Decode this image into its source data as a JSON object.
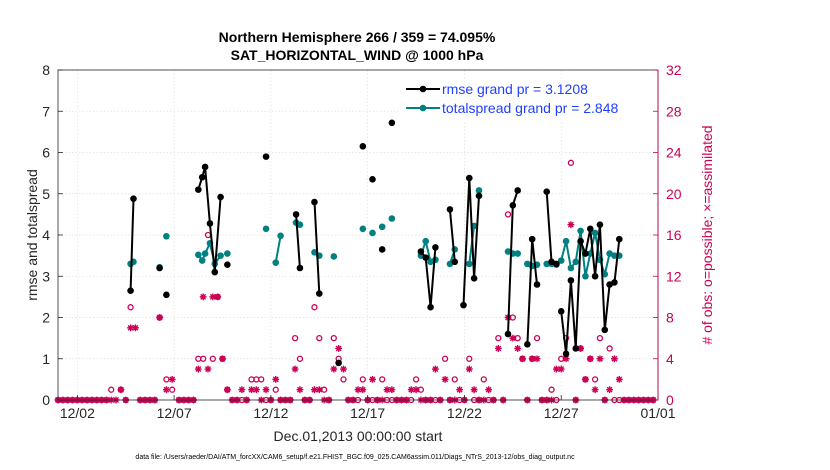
{
  "chart_data": {
    "type": "line",
    "title_line1": "Northern Hemisphere 266 / 359 = 74.095%",
    "title_line2": "SAT_HORIZONTAL_WIND @ 1000 hPa",
    "xlabel": "Dec.01,2013 00:00:00 start",
    "ylabel_left": "rmse and totalspread",
    "ylabel_right": "# of obs: o=possible; ×=assimilated",
    "footnote": "data file: /Users/raeder/DAI/ATM_forcXX/CAM6_setup/f.e21.FHIST_BGC.f09_025.CAM6assim.011/Diags_NTrS_2013-12/obs_diag_output.nc",
    "xlim": [
      0,
      31
    ],
    "ylim_left": [
      0,
      8
    ],
    "ylim_right": [
      0,
      32
    ],
    "x_ticks": [
      1,
      6,
      11,
      16,
      21,
      26,
      31
    ],
    "x_tick_labels": [
      "12/02",
      "12/07",
      "12/12",
      "12/17",
      "12/22",
      "12/27",
      "01/01"
    ],
    "y_left_ticks": [
      "0",
      "1",
      "2",
      "3",
      "4",
      "5",
      "6",
      "7",
      "8"
    ],
    "y_right_ticks": [
      "0",
      "4",
      "8",
      "12",
      "16",
      "20",
      "24",
      "28",
      "32"
    ],
    "grid": true,
    "colors": {
      "rmse": "#000000",
      "spread": "#008080",
      "obs": "#cc0055",
      "legend_text": "#1f3fff"
    },
    "series": [
      {
        "name": "rmse grand pr = 3.1208",
        "marker": "circle",
        "segments": [
          [
            [
              3.75,
              2.65
            ],
            [
              3.9,
              4.88
            ]
          ],
          [
            [
              5.25,
              3.2
            ]
          ],
          [
            [
              5.6,
              2.55
            ]
          ],
          [
            [
              7.25,
              5.1
            ],
            [
              7.45,
              5.4
            ],
            [
              7.6,
              5.65
            ],
            [
              7.85,
              4.28
            ],
            [
              8.1,
              3.1
            ],
            [
              8.4,
              4.92
            ]
          ],
          [
            [
              8.75,
              3.28
            ]
          ],
          [
            [
              10.75,
              5.9
            ]
          ],
          [
            [
              12.3,
              4.5
            ],
            [
              12.5,
              3.2
            ]
          ],
          [
            [
              13.25,
              4.8
            ],
            [
              13.5,
              2.58
            ]
          ],
          [
            [
              14.5,
              0.9
            ]
          ],
          [
            [
              15.75,
              6.15
            ]
          ],
          [
            [
              16.25,
              5.35
            ]
          ],
          [
            [
              16.75,
              3.65
            ]
          ],
          [
            [
              17.25,
              6.72
            ]
          ],
          [
            [
              18.75,
              3.6
            ],
            [
              19.0,
              3.45
            ],
            [
              19.25,
              2.25
            ],
            [
              19.5,
              3.7
            ]
          ],
          [
            [
              20.25,
              4.62
            ],
            [
              20.5,
              3.35
            ]
          ],
          [
            [
              20.95,
              2.3
            ],
            [
              21.25,
              5.38
            ],
            [
              21.5,
              2.95
            ],
            [
              21.75,
              4.95
            ]
          ],
          [
            [
              23.25,
              1.6
            ],
            [
              23.5,
              4.72
            ],
            [
              23.75,
              5.08
            ]
          ],
          [
            [
              24.25,
              1.35
            ],
            [
              24.5,
              3.9
            ],
            [
              24.75,
              2.8
            ]
          ],
          [
            [
              25.25,
              5.05
            ],
            [
              25.5,
              3.35
            ],
            [
              25.75,
              3.3
            ]
          ],
          [
            [
              26.0,
              2.15
            ],
            [
              26.25,
              1.12
            ],
            [
              26.5,
              2.9
            ],
            [
              26.75,
              1.25
            ],
            [
              27.0,
              3.85
            ],
            [
              27.25,
              3.55
            ],
            [
              27.5,
              4.15
            ],
            [
              27.75,
              3.0
            ],
            [
              28.0,
              4.25
            ],
            [
              28.25,
              1.7
            ],
            [
              28.5,
              2.8
            ],
            [
              28.75,
              2.85
            ],
            [
              29.0,
              3.9
            ]
          ]
        ]
      },
      {
        "name": "totalspread grand pr = 2.848",
        "marker": "circle",
        "segments": [
          [
            [
              3.75,
              3.3
            ],
            [
              3.9,
              3.35
            ]
          ],
          [
            [
              5.25,
              3.22
            ]
          ],
          [
            [
              5.6,
              3.97
            ]
          ],
          [
            [
              7.25,
              3.52
            ],
            [
              7.45,
              3.38
            ],
            [
              7.6,
              3.55
            ],
            [
              7.85,
              3.8
            ],
            [
              8.1,
              3.3
            ],
            [
              8.4,
              3.5
            ]
          ],
          [
            [
              8.75,
              3.55
            ]
          ],
          [
            [
              10.75,
              4.15
            ]
          ],
          [
            [
              11.25,
              3.33
            ],
            [
              11.5,
              3.98
            ]
          ],
          [
            [
              12.3,
              4.3
            ],
            [
              12.5,
              4.25
            ]
          ],
          [
            [
              13.25,
              3.58
            ],
            [
              13.5,
              3.5
            ]
          ],
          [
            [
              14.25,
              3.48
            ]
          ],
          [
            [
              15.75,
              4.15
            ]
          ],
          [
            [
              16.25,
              4.05
            ]
          ],
          [
            [
              16.75,
              4.2
            ]
          ],
          [
            [
              17.25,
              4.4
            ]
          ],
          [
            [
              18.75,
              3.5
            ],
            [
              19.0,
              3.85
            ],
            [
              19.25,
              3.35
            ],
            [
              19.5,
              3.4
            ]
          ],
          [
            [
              20.25,
              3.3
            ],
            [
              20.5,
              3.65
            ]
          ],
          [
            [
              21.25,
              3.3
            ],
            [
              21.5,
              4.22
            ]
          ],
          [
            [
              21.75,
              5.08
            ]
          ],
          [
            [
              23.25,
              3.6
            ],
            [
              23.5,
              3.55
            ],
            [
              23.75,
              3.55
            ]
          ],
          [
            [
              24.25,
              3.3
            ],
            [
              24.5,
              3.25
            ],
            [
              24.75,
              3.28
            ]
          ],
          [
            [
              25.25,
              3.3
            ],
            [
              25.5,
              3.3
            ],
            [
              25.75,
              3.28
            ]
          ],
          [
            [
              26.0,
              3.38
            ],
            [
              26.25,
              3.85
            ],
            [
              26.5,
              3.2
            ],
            [
              26.75,
              3.35
            ],
            [
              27.0,
              4.1
            ],
            [
              27.25,
              3.0
            ],
            [
              27.5,
              3.55
            ],
            [
              27.75,
              4.05
            ],
            [
              28.0,
              3.4
            ],
            [
              28.25,
              3.05
            ],
            [
              28.5,
              3.55
            ],
            [
              28.75,
              3.5
            ],
            [
              29.0,
              3.5
            ]
          ]
        ]
      }
    ],
    "obs_possible": [
      [
        0.0,
        0
      ],
      [
        0.25,
        0
      ],
      [
        0.5,
        0
      ],
      [
        0.75,
        0
      ],
      [
        1.0,
        0
      ],
      [
        1.25,
        0
      ],
      [
        1.5,
        0
      ],
      [
        1.75,
        0
      ],
      [
        2.0,
        0
      ],
      [
        2.25,
        0
      ],
      [
        2.5,
        0
      ],
      [
        2.75,
        1
      ],
      [
        3.25,
        1
      ],
      [
        3.5,
        0
      ],
      [
        3.75,
        9
      ],
      [
        4.25,
        0
      ],
      [
        4.5,
        0
      ],
      [
        4.75,
        0
      ],
      [
        5.0,
        0
      ],
      [
        5.25,
        8
      ],
      [
        5.6,
        2
      ],
      [
        5.9,
        1
      ],
      [
        6.25,
        0
      ],
      [
        6.5,
        0
      ],
      [
        6.75,
        0
      ],
      [
        7.0,
        0
      ],
      [
        7.25,
        4
      ],
      [
        7.5,
        4
      ],
      [
        7.75,
        16
      ],
      [
        8.0,
        4
      ],
      [
        8.25,
        10
      ],
      [
        8.5,
        4
      ],
      [
        8.75,
        1
      ],
      [
        9.0,
        0
      ],
      [
        9.25,
        0
      ],
      [
        9.5,
        0
      ],
      [
        9.75,
        0
      ],
      [
        10.0,
        2
      ],
      [
        10.25,
        2
      ],
      [
        10.5,
        2
      ],
      [
        10.75,
        0
      ],
      [
        11.0,
        0
      ],
      [
        11.25,
        1
      ],
      [
        11.5,
        0
      ],
      [
        11.75,
        0
      ],
      [
        12.0,
        0
      ],
      [
        12.25,
        6
      ],
      [
        12.5,
        4
      ],
      [
        12.75,
        0
      ],
      [
        13.0,
        0
      ],
      [
        13.25,
        9
      ],
      [
        13.5,
        6
      ],
      [
        13.75,
        1
      ],
      [
        14.0,
        0
      ],
      [
        14.25,
        6
      ],
      [
        14.5,
        4
      ],
      [
        14.75,
        2
      ],
      [
        15.0,
        0
      ],
      [
        15.25,
        0
      ],
      [
        15.5,
        0
      ],
      [
        15.75,
        2
      ],
      [
        16.0,
        0
      ],
      [
        16.25,
        0
      ],
      [
        16.5,
        0
      ],
      [
        16.75,
        2
      ],
      [
        17.0,
        0
      ],
      [
        17.25,
        0
      ],
      [
        17.5,
        0
      ],
      [
        17.75,
        0
      ],
      [
        18.0,
        0
      ],
      [
        18.25,
        0
      ],
      [
        18.5,
        2
      ],
      [
        18.75,
        1
      ],
      [
        19.0,
        0
      ],
      [
        19.25,
        0
      ],
      [
        19.5,
        0
      ],
      [
        19.75,
        0
      ],
      [
        20.0,
        4
      ],
      [
        20.25,
        0
      ],
      [
        20.5,
        2
      ],
      [
        20.75,
        0
      ],
      [
        21.0,
        0
      ],
      [
        21.25,
        4
      ],
      [
        21.5,
        0
      ],
      [
        21.75,
        0
      ],
      [
        22.0,
        2
      ],
      [
        22.25,
        0
      ],
      [
        22.5,
        0
      ],
      [
        22.75,
        6
      ],
      [
        23.0,
        0
      ],
      [
        23.25,
        18
      ],
      [
        23.5,
        8
      ],
      [
        23.75,
        6
      ],
      [
        24.0,
        4
      ],
      [
        24.25,
        0
      ],
      [
        24.5,
        4
      ],
      [
        24.75,
        6
      ],
      [
        25.0,
        0
      ],
      [
        25.25,
        0
      ],
      [
        25.5,
        1
      ],
      [
        25.75,
        0
      ],
      [
        26.0,
        4
      ],
      [
        26.25,
        6
      ],
      [
        26.5,
        23
      ],
      [
        26.75,
        0
      ],
      [
        27.0,
        5
      ],
      [
        27.25,
        2
      ],
      [
        27.5,
        4
      ],
      [
        27.75,
        2
      ],
      [
        28.0,
        6
      ],
      [
        28.25,
        0
      ],
      [
        28.5,
        5
      ],
      [
        28.75,
        0
      ],
      [
        29.0,
        0
      ],
      [
        29.25,
        0
      ],
      [
        29.5,
        0
      ],
      [
        29.75,
        0
      ],
      [
        30.0,
        0
      ],
      [
        30.25,
        0
      ],
      [
        30.5,
        0
      ],
      [
        30.75,
        0
      ]
    ],
    "obs_assimilated": [
      [
        0.0,
        0
      ],
      [
        0.25,
        0
      ],
      [
        0.5,
        0
      ],
      [
        0.75,
        0
      ],
      [
        1.0,
        0
      ],
      [
        1.25,
        0
      ],
      [
        1.5,
        0
      ],
      [
        1.75,
        0
      ],
      [
        2.0,
        0
      ],
      [
        2.25,
        0
      ],
      [
        2.5,
        0
      ],
      [
        2.75,
        0
      ],
      [
        3.0,
        0
      ],
      [
        3.25,
        1
      ],
      [
        3.5,
        0
      ],
      [
        3.75,
        7
      ],
      [
        4.0,
        7
      ],
      [
        4.25,
        0
      ],
      [
        4.5,
        0
      ],
      [
        4.75,
        0
      ],
      [
        5.0,
        0
      ],
      [
        5.25,
        8
      ],
      [
        5.6,
        1
      ],
      [
        5.9,
        2
      ],
      [
        6.25,
        0
      ],
      [
        6.5,
        0
      ],
      [
        6.75,
        0
      ],
      [
        7.0,
        0
      ],
      [
        7.25,
        3
      ],
      [
        7.5,
        10
      ],
      [
        7.75,
        3
      ],
      [
        8.0,
        10
      ],
      [
        8.25,
        10
      ],
      [
        8.5,
        4
      ],
      [
        8.75,
        1
      ],
      [
        9.0,
        0
      ],
      [
        9.25,
        0
      ],
      [
        9.5,
        1
      ],
      [
        9.75,
        0
      ],
      [
        10.0,
        1
      ],
      [
        10.25,
        1
      ],
      [
        10.5,
        0
      ],
      [
        10.75,
        1
      ],
      [
        11.0,
        0
      ],
      [
        11.25,
        2
      ],
      [
        11.5,
        0
      ],
      [
        11.75,
        0
      ],
      [
        12.0,
        0
      ],
      [
        12.25,
        3
      ],
      [
        12.5,
        1
      ],
      [
        12.75,
        0
      ],
      [
        13.0,
        0
      ],
      [
        13.25,
        1
      ],
      [
        13.5,
        1
      ],
      [
        13.75,
        0
      ],
      [
        14.0,
        0
      ],
      [
        14.25,
        3
      ],
      [
        14.5,
        5
      ],
      [
        14.75,
        3
      ],
      [
        15.0,
        0
      ],
      [
        15.25,
        0
      ],
      [
        15.5,
        1
      ],
      [
        15.75,
        1
      ],
      [
        16.0,
        0
      ],
      [
        16.25,
        2
      ],
      [
        16.5,
        0
      ],
      [
        16.75,
        0
      ],
      [
        17.0,
        1
      ],
      [
        17.25,
        1
      ],
      [
        17.5,
        0
      ],
      [
        17.75,
        0
      ],
      [
        18.0,
        0
      ],
      [
        18.25,
        1
      ],
      [
        18.5,
        1
      ],
      [
        18.75,
        0
      ],
      [
        19.0,
        0
      ],
      [
        19.25,
        0
      ],
      [
        19.5,
        3
      ],
      [
        19.75,
        0
      ],
      [
        20.0,
        2
      ],
      [
        20.25,
        0
      ],
      [
        20.5,
        0
      ],
      [
        20.75,
        1
      ],
      [
        21.0,
        0
      ],
      [
        21.25,
        3
      ],
      [
        21.5,
        1
      ],
      [
        21.75,
        0
      ],
      [
        22.0,
        0
      ],
      [
        22.25,
        1
      ],
      [
        22.5,
        0
      ],
      [
        22.75,
        5
      ],
      [
        23.0,
        0
      ],
      [
        23.25,
        8
      ],
      [
        23.5,
        6
      ],
      [
        23.75,
        5
      ],
      [
        24.0,
        4
      ],
      [
        24.25,
        0
      ],
      [
        24.5,
        4
      ],
      [
        24.75,
        4
      ],
      [
        25.0,
        0
      ],
      [
        25.25,
        0
      ],
      [
        25.5,
        0
      ],
      [
        25.75,
        3
      ],
      [
        26.0,
        3
      ],
      [
        26.25,
        4
      ],
      [
        26.5,
        17
      ],
      [
        26.75,
        0
      ],
      [
        27.0,
        5
      ],
      [
        27.25,
        2
      ],
      [
        27.5,
        4
      ],
      [
        27.75,
        1
      ],
      [
        28.0,
        4
      ],
      [
        28.25,
        0
      ],
      [
        28.5,
        1
      ],
      [
        28.75,
        4
      ],
      [
        29.0,
        2
      ],
      [
        29.25,
        0
      ],
      [
        29.5,
        0
      ],
      [
        29.75,
        0
      ],
      [
        30.0,
        0
      ],
      [
        30.25,
        0
      ],
      [
        30.5,
        0
      ],
      [
        30.75,
        0
      ]
    ]
  }
}
